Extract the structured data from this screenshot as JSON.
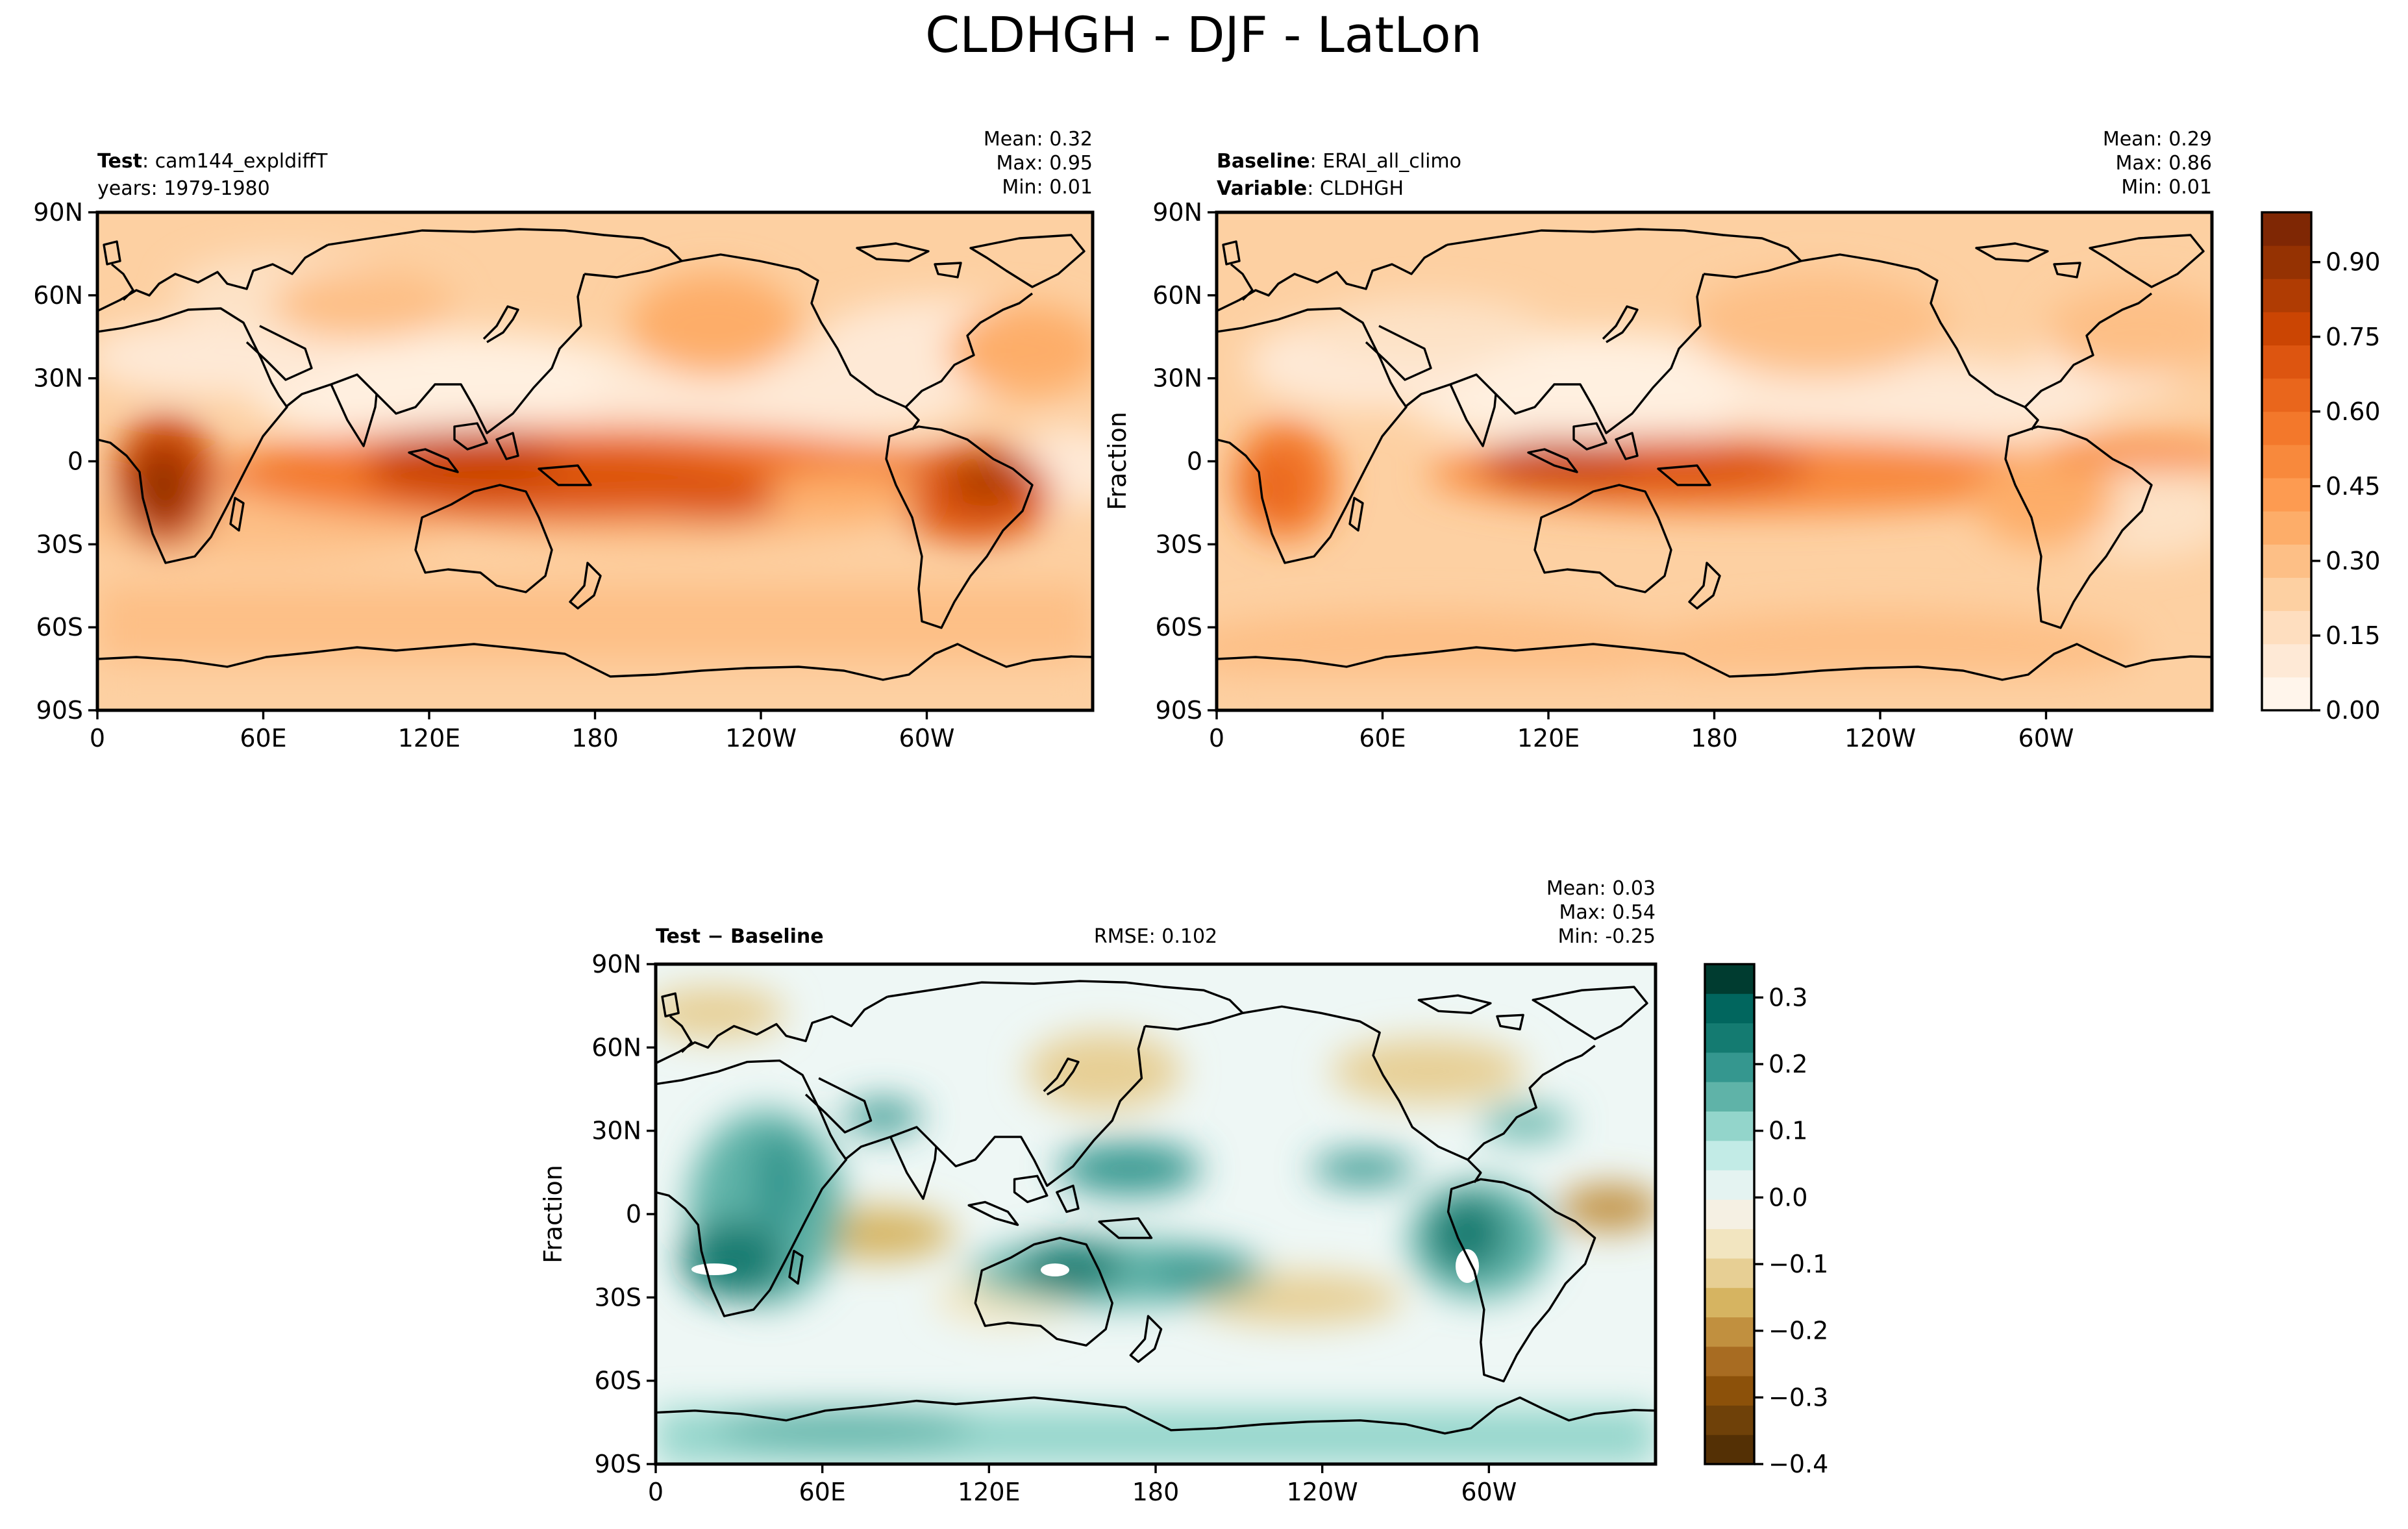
{
  "title": "CLDHGH - DJF - LatLon",
  "panels": {
    "test": {
      "label_bold": "Test",
      "label_value": "cam144_expldiffT",
      "line2": "years: 1979-1980",
      "stats": [
        "Mean:  0.32",
        "Max:  0.95",
        "Min:  0.01"
      ]
    },
    "baseline": {
      "label_bold": "Baseline",
      "label_value": "ERAI_all_climo",
      "line2_bold": "Variable",
      "line2_value": "CLDHGH",
      "ylabel": "Fraction",
      "stats": [
        "Mean:  0.29",
        "Max:  0.86",
        "Min:  0.01"
      ]
    },
    "diff": {
      "label_bold": "Test − Baseline",
      "rmse": "RMSE: 0.102",
      "ylabel": "Fraction",
      "stats": [
        "Mean:  0.03",
        "Max:  0.54",
        "Min: -0.25"
      ]
    }
  },
  "axes": {
    "lat_ticks": [
      "90N",
      "60N",
      "30N",
      "0",
      "30S",
      "60S",
      "90S"
    ],
    "lon_ticks": [
      "0",
      "60E",
      "120E",
      "180",
      "120W",
      "60W"
    ]
  },
  "colorbar_main": {
    "ticks": [
      "0.90",
      "0.75",
      "0.60",
      "0.45",
      "0.30",
      "0.15",
      "0.00"
    ],
    "colors": [
      "#fff5eb",
      "#fee9d6",
      "#fedebf",
      "#fdd0a2",
      "#fdbf86",
      "#fdad69",
      "#fd9b51",
      "#f8893c",
      "#f3782b",
      "#e9661c",
      "#dd5510",
      "#cb4503",
      "#b03c03",
      "#953202",
      "#7f2704"
    ]
  },
  "colorbar_diff": {
    "ticks": [
      "0.3",
      "0.2",
      "0.1",
      "0.0",
      "−0.1",
      "−0.2",
      "−0.3",
      "−0.4"
    ],
    "colors": [
      "#543005",
      "#6f4109",
      "#8c510a",
      "#a86c22",
      "#c1903f",
      "#d6b461",
      "#e7cf94",
      "#f2e5c0",
      "#f5f0e3",
      "#e4f3f1",
      "#c2ebe6",
      "#93d5cb",
      "#5fb3a8",
      "#35978f",
      "#147b71",
      "#01665e",
      "#003c30"
    ]
  },
  "chart_data": [
    {
      "type": "heatmap",
      "name": "Test",
      "variable": "CLDHGH",
      "units": "Fraction",
      "x_range": [
        "0",
        "360"
      ],
      "y_range": [
        "90S",
        "90N"
      ],
      "stats": {
        "mean": 0.32,
        "max": 0.95,
        "min": 0.01
      },
      "color_range": [
        0.0,
        1.0
      ]
    },
    {
      "type": "heatmap",
      "name": "Baseline",
      "variable": "CLDHGH",
      "units": "Fraction",
      "x_range": [
        "0",
        "360"
      ],
      "y_range": [
        "90S",
        "90N"
      ],
      "stats": {
        "mean": 0.29,
        "max": 0.86,
        "min": 0.01
      },
      "color_range": [
        0.0,
        1.0
      ]
    },
    {
      "type": "heatmap",
      "name": "Test - Baseline",
      "variable": "CLDHGH",
      "units": "Fraction",
      "x_range": [
        "0",
        "360"
      ],
      "y_range": [
        "90S",
        "90N"
      ],
      "stats": {
        "mean": 0.03,
        "max": 0.54,
        "min": -0.25,
        "rmse": 0.102
      },
      "color_range": [
        -0.4,
        0.35
      ]
    }
  ]
}
